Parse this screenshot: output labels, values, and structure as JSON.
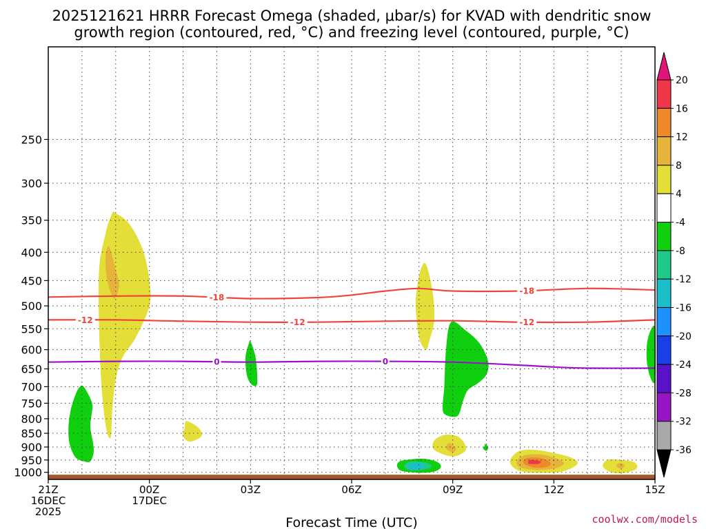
{
  "chart_data": {
    "type": "contour",
    "title_line1": "2025121621 HRRR Forecast Omega (shaded, μbar/s) for KVAD with dendritic snow",
    "title_line2": "growth region (contoured, red, °C) and freezing level (contoured, purple, °C)",
    "xlabel": "Forecast Time (UTC)",
    "credit": "coolwx.com/models",
    "x_range_hours": [
      0,
      18
    ],
    "y_range_hpa": [
      1030,
      170
    ],
    "y_ticks": [
      250,
      300,
      350,
      400,
      450,
      500,
      550,
      600,
      650,
      700,
      750,
      800,
      850,
      900,
      950,
      1000
    ],
    "x_ticks": [
      {
        "hour": 0,
        "lines": [
          "21Z",
          "16DEC",
          "2025"
        ]
      },
      {
        "hour": 3,
        "lines": [
          "00Z",
          "17DEC"
        ]
      },
      {
        "hour": 6,
        "lines": [
          "03Z"
        ]
      },
      {
        "hour": 9,
        "lines": [
          "06Z"
        ]
      },
      {
        "hour": 12,
        "lines": [
          "09Z"
        ]
      },
      {
        "hour": 15,
        "lines": [
          "12Z"
        ]
      },
      {
        "hour": 18,
        "lines": [
          "15Z"
        ]
      }
    ],
    "colorbar": {
      "labels": [
        "20",
        "16",
        "12",
        "8",
        "4",
        "-4",
        "-8",
        "-12",
        "-16",
        "-20",
        "-24",
        "-28",
        "-32",
        "-36"
      ],
      "colors": [
        "#f0374a",
        "#ef8a2a",
        "#e7b43b",
        "#e4de38",
        "#ffffff",
        "#0fcf0f",
        "#1ec98a",
        "#1cbfc8",
        "#1e90ff",
        "#1b3fe6",
        "#5a12c8",
        "#9914c4",
        "#a9a9a9"
      ],
      "top_color": "#e0147a",
      "bottom_color": "#000000"
    },
    "contours": [
      {
        "name": "dendritic-upper",
        "label": "-18",
        "color": "#f0443a",
        "hours": [
          0,
          2,
          4,
          6,
          8,
          9,
          10,
          11,
          12,
          14,
          16,
          18
        ],
        "hpa": [
          482,
          480,
          480,
          485,
          483,
          478,
          470,
          465,
          470,
          470,
          465,
          468
        ],
        "label_hours": [
          5,
          14.2
        ]
      },
      {
        "name": "dendritic-lower",
        "label": "-12",
        "color": "#f0443a",
        "hours": [
          0,
          2,
          4,
          6,
          8,
          10,
          12,
          14,
          16,
          18
        ],
        "hpa": [
          530,
          530,
          533,
          535,
          535,
          533,
          532,
          535,
          535,
          530
        ],
        "label_hours": [
          1.1,
          7.4,
          14.2
        ]
      },
      {
        "name": "freezing-level",
        "label": "0",
        "color": "#9a12c8",
        "hours": [
          0,
          2,
          4,
          6,
          8,
          10,
          12,
          14,
          15,
          16,
          18
        ],
        "hpa": [
          632,
          630,
          630,
          632,
          630,
          630,
          632,
          640,
          645,
          648,
          648
        ],
        "label_hours": [
          5,
          10
        ]
      }
    ],
    "regions": [
      {
        "name": "omega-plume-positive",
        "value": "4 to 8",
        "color": "#e4de38",
        "hours": [
          2.0,
          2.4,
          2.8,
          3.0,
          3.0,
          2.6,
          2.2,
          2.0,
          1.9,
          1.85,
          1.7,
          1.55,
          1.5,
          1.7,
          1.9
        ],
        "hpa": [
          340,
          355,
          395,
          450,
          500,
          570,
          620,
          680,
          770,
          865,
          820,
          650,
          440,
          370,
          340
        ]
      },
      {
        "name": "omega-plume-core",
        "value": "8 to 12",
        "color": "#e7b43b",
        "hours": [
          1.8,
          2.0,
          2.1,
          1.95,
          1.75,
          1.7
        ],
        "hpa": [
          390,
          430,
          460,
          485,
          450,
          410
        ]
      },
      {
        "name": "omega-positive-0850",
        "value": "4 to 8",
        "color": "#e4de38",
        "hours": [
          4.1,
          4.45,
          4.55,
          4.2,
          4.0,
          4.05
        ],
        "hpa": [
          808,
          830,
          860,
          880,
          860,
          830
        ]
      },
      {
        "name": "omega-negative-0850",
        "value": "-4 to -8",
        "color": "#0fcf0f",
        "hours": [
          1.05,
          1.3,
          1.28,
          1.25,
          1.35,
          1.25,
          1.05,
          0.85,
          0.72,
          0.62,
          0.6,
          0.65,
          0.75,
          0.9
        ],
        "hpa": [
          700,
          750,
          790,
          830,
          910,
          955,
          955,
          945,
          920,
          880,
          830,
          780,
          740,
          705
        ]
      },
      {
        "name": "omega-negative-0600",
        "value": "-4 to -8",
        "color": "#0fcf0f",
        "hours": [
          6.0,
          6.15,
          6.2,
          6.05,
          5.9,
          5.85,
          5.95
        ],
        "hpa": [
          580,
          620,
          690,
          695,
          670,
          620,
          585
        ]
      },
      {
        "name": "omega-positive-0700z",
        "value": "4 to 8",
        "color": "#e4de38",
        "hours": [
          11.2,
          11.4,
          11.45,
          11.3,
          11.2,
          11.0,
          10.9,
          10.95,
          11.05
        ],
        "hpa": [
          420,
          470,
          530,
          580,
          600,
          570,
          500,
          460,
          430
        ]
      },
      {
        "name": "omega-negative-0900z",
        "value": "-4 to -8",
        "color": "#0fcf0f",
        "hours": [
          11.95,
          12.4,
          12.8,
          13.05,
          13.0,
          12.75,
          12.45,
          12.3,
          12.15,
          11.85,
          11.7,
          11.75,
          11.8
        ],
        "hpa": [
          535,
          555,
          585,
          630,
          665,
          690,
          710,
          745,
          790,
          790,
          770,
          700,
          600
        ]
      },
      {
        "name": "omega-positive-0900",
        "value": "4 to 8",
        "color": "#e4de38",
        "hours": [
          11.8,
          12.2,
          12.4,
          12.2,
          11.9,
          11.5,
          11.4,
          11.5
        ],
        "hpa": [
          855,
          865,
          905,
          930,
          935,
          915,
          895,
          870
        ]
      },
      {
        "name": "omega-positive-0900-core",
        "value": "8 to 12",
        "color": "#e7b43b",
        "hours": [
          11.9,
          12.1,
          12.0,
          11.8
        ],
        "hpa": [
          885,
          905,
          920,
          905
        ]
      },
      {
        "name": "omega-negative-0975",
        "value": "-4 to -8",
        "color": "#0fcf0f",
        "hours": [
          10.6,
          11.1,
          11.5,
          11.65,
          11.5,
          11.1,
          10.5,
          10.35,
          10.4
        ],
        "hpa": [
          950,
          945,
          955,
          975,
          995,
          1002,
          995,
          975,
          958
        ]
      },
      {
        "name": "omega-negative-0975-core",
        "value": "-8 to -12",
        "color": "#1ec98a",
        "hours": [
          10.7,
          11.0,
          11.3,
          11.35,
          11.0,
          10.7,
          10.55
        ],
        "hpa": [
          958,
          957,
          965,
          980,
          992,
          990,
          975
        ]
      },
      {
        "name": "omega-negative-0975-inner",
        "value": "-12 to -16",
        "color": "#1cbfc8",
        "hours": [
          10.8,
          11.1,
          11.15,
          10.9,
          10.65,
          10.7
        ],
        "hpa": [
          962,
          962,
          980,
          990,
          985,
          970
        ]
      },
      {
        "name": "omega-negative-0910",
        "value": "-4 to -8",
        "color": "#0fcf0f",
        "hours": [
          12.95,
          13.05,
          13.0,
          12.9,
          12.95
        ],
        "hpa": [
          888,
          900,
          915,
          905,
          895
        ]
      },
      {
        "name": "omega-positive-0960",
        "value": "4 to 8",
        "color": "#e4de38",
        "hours": [
          13.9,
          14.3,
          14.9,
          15.5,
          15.7,
          15.3,
          14.7,
          14.0,
          13.7
        ],
        "hpa": [
          920,
          910,
          920,
          940,
          965,
          995,
          1002,
          995,
          960
        ]
      },
      {
        "name": "omega-positive-0960-mid",
        "value": "8 to 12",
        "color": "#e7b43b",
        "hours": [
          14.1,
          14.6,
          15.1,
          15.3,
          15.0,
          14.5,
          14.0,
          13.9
        ],
        "hpa": [
          933,
          928,
          945,
          965,
          985,
          990,
          980,
          955
        ]
      },
      {
        "name": "omega-positive-0960-inner",
        "value": "12 to 16",
        "color": "#ef8a2a",
        "hours": [
          14.2,
          14.6,
          14.9,
          14.8,
          14.4,
          14.1
        ],
        "hpa": [
          943,
          942,
          960,
          978,
          980,
          962
        ]
      },
      {
        "name": "omega-positive-0960-peak",
        "value": "16 to 20",
        "color": "#f0374a",
        "hours": [
          14.3,
          14.6,
          14.55,
          14.25
        ],
        "hpa": [
          950,
          955,
          965,
          965
        ]
      },
      {
        "name": "omega-positive-0970",
        "value": "4 to 8",
        "color": "#e4de38",
        "hours": [
          16.6,
          17.0,
          17.4,
          17.45,
          17.1,
          16.7,
          16.45
        ],
        "hpa": [
          950,
          950,
          960,
          985,
          1002,
          1000,
          975
        ]
      },
      {
        "name": "omega-positive-0970-core",
        "value": "8 to 12",
        "color": "#e7b43b",
        "hours": [
          16.95,
          17.1,
          17.0,
          16.85
        ],
        "hpa": [
          962,
          970,
          985,
          975
        ]
      },
      {
        "name": "omega-negative-0620-edge",
        "value": "-4 to -8",
        "color": "#0fcf0f",
        "hours": [
          18.0,
          18.0,
          17.85,
          17.75,
          17.8
        ],
        "hpa": [
          548,
          680,
          670,
          620,
          570
        ]
      }
    ],
    "terrain": {
      "color": "#a5552a",
      "top_hpa": 1010,
      "bottom_hpa": 1030
    }
  }
}
